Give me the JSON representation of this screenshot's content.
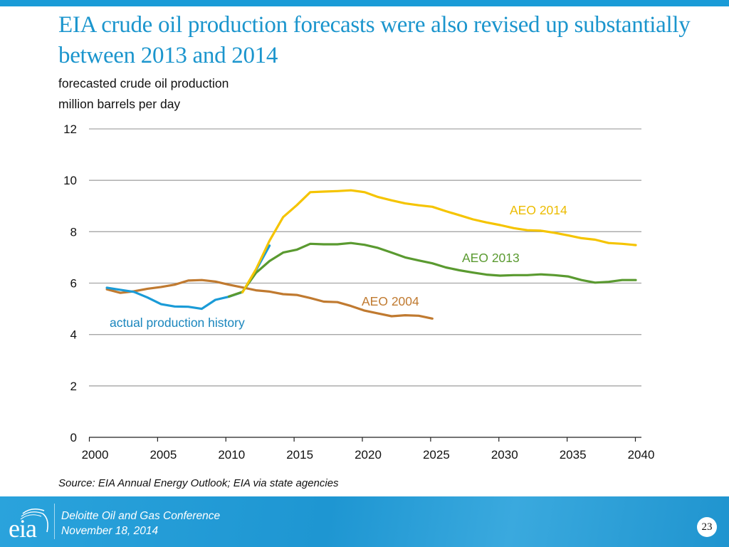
{
  "header": {
    "title": "EIA crude oil production forecasts were also revised up substantially between 2013 and 2014",
    "subtitle_line1": "forecasted crude oil production",
    "subtitle_line2": "million barrels per day"
  },
  "colors": {
    "accent": "#1a9bd7",
    "title": "#1b95cd",
    "actual": "#1a9bd7",
    "aeo2004": "#c07a30",
    "aeo2013": "#5a9a30",
    "aeo2014": "#f5c400"
  },
  "chart_data": {
    "type": "line",
    "title": "forecasted crude oil production",
    "ylabel": "million barrels per day",
    "xlabel": "",
    "xlim": [
      2000,
      2040
    ],
    "ylim": [
      0,
      12
    ],
    "x_ticks": [
      "2000",
      "2005",
      "2010",
      "2015",
      "2020",
      "2025",
      "2030",
      "2035",
      "2040"
    ],
    "y_ticks": [
      "0",
      "2",
      "4",
      "6",
      "8",
      "10",
      "12"
    ],
    "grid": true,
    "legend": "inline labels",
    "series": [
      {
        "name": "actual production history",
        "label": "actual production history",
        "color": "#1a9bd7",
        "x": [
          2001,
          2002,
          2003,
          2004,
          2005,
          2006,
          2007,
          2008,
          2009,
          2010,
          2011,
          2012,
          2013
        ],
        "values": [
          5.82,
          5.74,
          5.66,
          5.44,
          5.18,
          5.09,
          5.08,
          5.0,
          5.35,
          5.47,
          5.65,
          6.5,
          7.46
        ]
      },
      {
        "name": "AEO 2004",
        "label": "AEO 2004",
        "color": "#c07a30",
        "x": [
          2001,
          2002,
          2003,
          2004,
          2005,
          2006,
          2007,
          2008,
          2009,
          2010,
          2011,
          2012,
          2013,
          2014,
          2015,
          2016,
          2017,
          2018,
          2019,
          2020,
          2021,
          2022,
          2023,
          2024,
          2025
        ],
        "values": [
          5.76,
          5.62,
          5.68,
          5.78,
          5.85,
          5.94,
          6.1,
          6.12,
          6.06,
          5.94,
          5.83,
          5.72,
          5.67,
          5.57,
          5.54,
          5.42,
          5.28,
          5.26,
          5.11,
          4.93,
          4.82,
          4.71,
          4.75,
          4.73,
          4.62
        ]
      },
      {
        "name": "AEO 2013",
        "label": "AEO 2013",
        "color": "#5a9a30",
        "x": [
          2010,
          2011,
          2012,
          2013,
          2014,
          2015,
          2016,
          2017,
          2018,
          2019,
          2020,
          2021,
          2022,
          2023,
          2024,
          2025,
          2026,
          2027,
          2028,
          2029,
          2030,
          2031,
          2032,
          2033,
          2034,
          2035,
          2036,
          2037,
          2038,
          2039,
          2040
        ],
        "values": [
          5.48,
          5.66,
          6.4,
          6.86,
          7.19,
          7.3,
          7.53,
          7.51,
          7.51,
          7.56,
          7.49,
          7.37,
          7.19,
          7.0,
          6.88,
          6.77,
          6.61,
          6.5,
          6.41,
          6.33,
          6.29,
          6.31,
          6.31,
          6.34,
          6.31,
          6.26,
          6.12,
          6.02,
          6.05,
          6.12,
          6.12
        ]
      },
      {
        "name": "AEO 2014",
        "label": "AEO 2014",
        "color": "#f5c400",
        "x": [
          2011,
          2012,
          2013,
          2014,
          2015,
          2016,
          2017,
          2018,
          2019,
          2020,
          2021,
          2022,
          2023,
          2024,
          2025,
          2026,
          2027,
          2028,
          2029,
          2030,
          2031,
          2032,
          2033,
          2034,
          2035,
          2036,
          2037,
          2038,
          2039,
          2040
        ],
        "values": [
          5.64,
          6.54,
          7.65,
          8.57,
          9.03,
          9.54,
          9.56,
          9.58,
          9.61,
          9.54,
          9.35,
          9.22,
          9.1,
          9.03,
          8.97,
          8.8,
          8.64,
          8.48,
          8.36,
          8.26,
          8.14,
          8.06,
          8.04,
          7.96,
          7.86,
          7.75,
          7.69,
          7.56,
          7.53,
          7.48
        ]
      }
    ]
  },
  "source": "Source: EIA Annual Energy Outlook; EIA via state agencies",
  "footer": {
    "logo_text": "eia",
    "conference": "Deloitte Oil and Gas Conference",
    "date": "November 18, 2014",
    "page_number": "23"
  }
}
